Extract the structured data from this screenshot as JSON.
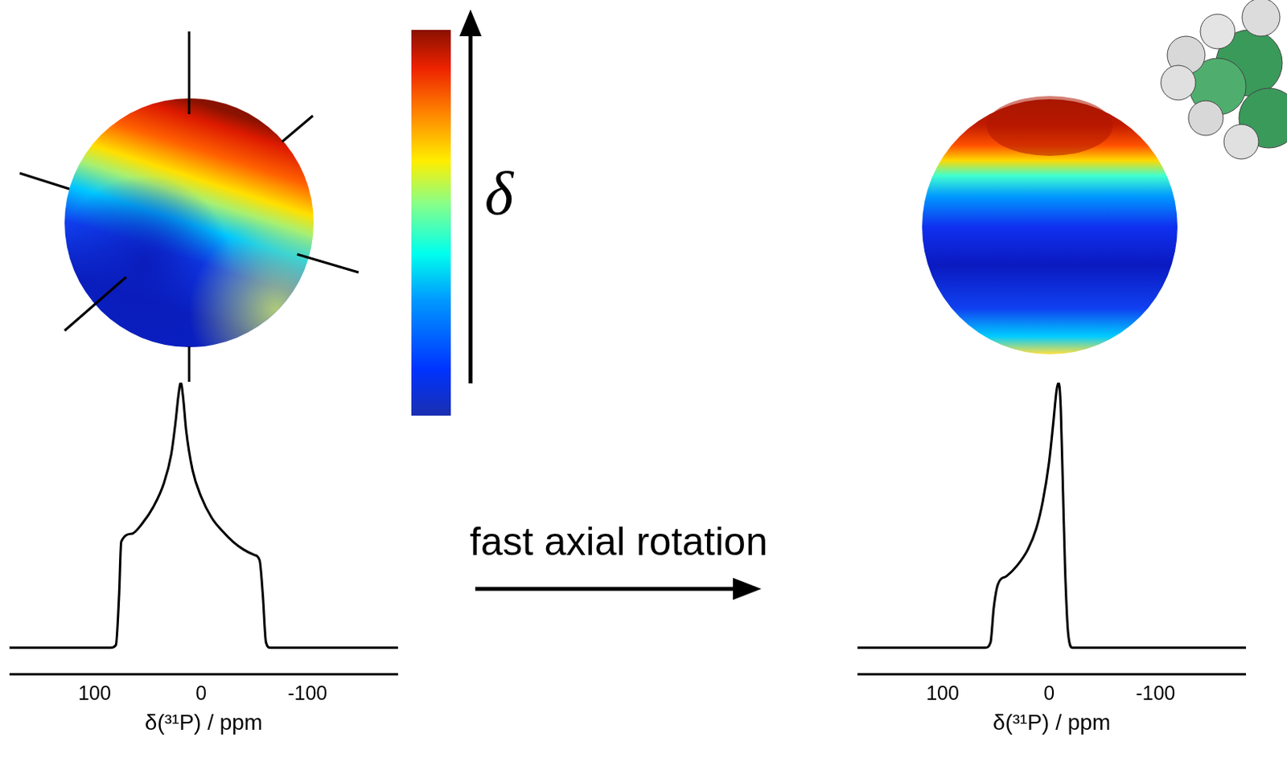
{
  "diagram": {
    "colorbar_label": "δ",
    "arrow_label": "fast axial rotation"
  },
  "chart_data": [
    {
      "type": "line",
      "x_label": "δ(³¹P) / ppm",
      "color": "#000000",
      "grid": false,
      "tick_labels": "x",
      "xlim": [
        180,
        -185
      ],
      "xticks": [
        100,
        0,
        -100
      ],
      "ylim": [
        -0.1,
        1
      ],
      "x": [
        180,
        100,
        85,
        80,
        77,
        75,
        65,
        55,
        45,
        35,
        28,
        24,
        21,
        19,
        17,
        14,
        8,
        0,
        -10,
        -20,
        -30,
        -40,
        -50,
        -55,
        -58,
        -61,
        -65,
        -100,
        -185
      ],
      "values": [
        0,
        0,
        0,
        0.01,
        0.2,
        0.4,
        0.43,
        0.47,
        0.53,
        0.62,
        0.73,
        0.85,
        0.96,
        1.0,
        0.95,
        0.82,
        0.67,
        0.57,
        0.49,
        0.44,
        0.4,
        0.37,
        0.35,
        0.33,
        0.2,
        0.02,
        0,
        0,
        0
      ]
    },
    {
      "type": "line",
      "x_label": "δ(³¹P) / ppm",
      "color": "#000000",
      "grid": false,
      "tick_labels": "x",
      "xlim": [
        180,
        -185
      ],
      "xticks": [
        100,
        0,
        -100
      ],
      "ylim": [
        -0.1,
        1
      ],
      "x": [
        180,
        60,
        55,
        52,
        48,
        40,
        30,
        20,
        12,
        6,
        0,
        -4,
        -7,
        -9,
        -11,
        -13,
        -15,
        -18,
        -22,
        -185
      ],
      "values": [
        0,
        0,
        0.02,
        0.15,
        0.24,
        0.27,
        0.31,
        0.37,
        0.45,
        0.55,
        0.7,
        0.85,
        0.97,
        1.0,
        0.9,
        0.6,
        0.3,
        0.05,
        0,
        0
      ]
    }
  ]
}
